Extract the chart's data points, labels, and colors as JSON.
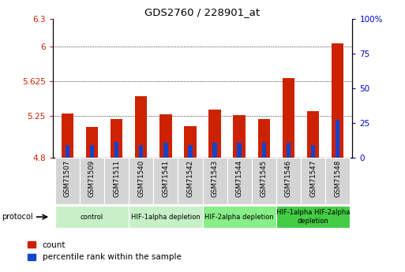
{
  "title": "GDS2760 / 228901_at",
  "samples": [
    "GSM71507",
    "GSM71509",
    "GSM71511",
    "GSM71540",
    "GSM71541",
    "GSM71542",
    "GSM71543",
    "GSM71544",
    "GSM71545",
    "GSM71546",
    "GSM71547",
    "GSM71548"
  ],
  "count_values": [
    5.28,
    5.13,
    5.22,
    5.47,
    5.27,
    5.14,
    5.32,
    5.26,
    5.22,
    5.66,
    5.3,
    6.04
  ],
  "percentile_values": [
    4.94,
    4.94,
    4.97,
    4.94,
    4.96,
    4.94,
    4.96,
    4.96,
    4.96,
    4.96,
    4.94,
    5.21
  ],
  "ymin": 4.8,
  "ymax": 6.3,
  "yticks": [
    4.8,
    5.25,
    5.625,
    6.0,
    6.3
  ],
  "ytick_labels": [
    "4.8",
    "5.25",
    "5.625",
    "6",
    "6.3"
  ],
  "y2ticks": [
    0,
    25,
    50,
    75,
    100
  ],
  "y2tick_labels": [
    "0",
    "25",
    "50",
    "75",
    "100%"
  ],
  "bar_color_red": "#cc2200",
  "bar_color_blue": "#1144cc",
  "bar_width": 0.5,
  "group_boundaries": [
    {
      "start": 0,
      "end": 2,
      "label": "control",
      "color": "#c8f0c8"
    },
    {
      "start": 3,
      "end": 5,
      "label": "HIF-1alpha depletion",
      "color": "#c8f0c8"
    },
    {
      "start": 6,
      "end": 8,
      "label": "HIF-2alpha depletion",
      "color": "#88ee88"
    },
    {
      "start": 9,
      "end": 11,
      "label": "HIF-1alpha HIF-2alpha\ndepletion",
      "color": "#44cc44"
    }
  ],
  "protocol_label": "protocol",
  "legend_count_label": "count",
  "legend_percentile_label": "percentile rank within the sample",
  "bg_color": "#ffffff",
  "tick_color_left": "#cc2200",
  "tick_color_right": "#0000cc",
  "sample_box_color": "#d4d4d4"
}
